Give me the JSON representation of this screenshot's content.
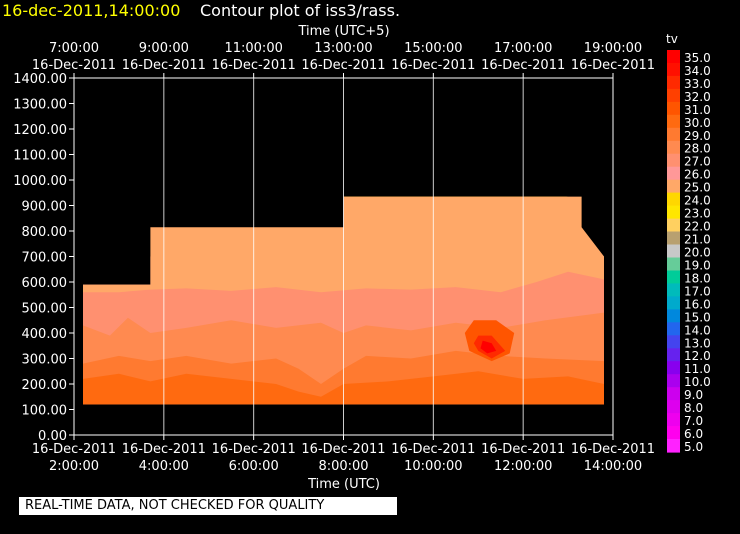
{
  "header": {
    "date": "16-dec-2011,14:00:00",
    "title": "Contour plot of iss3/rass."
  },
  "notice": "REAL-TIME DATA, NOT CHECKED FOR QUALITY",
  "chart_data": {
    "type": "heatmap",
    "top_axis_label": "Time (UTC+5)",
    "bottom_axis_label": "Time (UTC)",
    "bottom_ticks": [
      {
        "hour": 2,
        "date": "16-Dec-2011",
        "time": "2:00:00"
      },
      {
        "hour": 4,
        "date": "16-Dec-2011",
        "time": "4:00:00"
      },
      {
        "hour": 6,
        "date": "16-Dec-2011",
        "time": "6:00:00"
      },
      {
        "hour": 8,
        "date": "16-Dec-2011",
        "time": "8:00:00"
      },
      {
        "hour": 10,
        "date": "16-Dec-2011",
        "time": "10:00:00"
      },
      {
        "hour": 12,
        "date": "16-Dec-2011",
        "time": "12:00:00"
      },
      {
        "hour": 14,
        "date": "16-Dec-2011",
        "time": "14:00:00"
      }
    ],
    "top_ticks": [
      {
        "hour": 2,
        "time": "7:00:00",
        "date": "16-Dec-2011"
      },
      {
        "hour": 4,
        "time": "9:00:00",
        "date": "16-Dec-2011"
      },
      {
        "hour": 6,
        "time": "11:00:00",
        "date": "16-Dec-2011"
      },
      {
        "hour": 8,
        "time": "13:00:00",
        "date": "16-Dec-2011"
      },
      {
        "hour": 10,
        "time": "15:00:00",
        "date": "16-Dec-2011"
      },
      {
        "hour": 12,
        "time": "17:00:00",
        "date": "16-Dec-2011"
      },
      {
        "hour": 14,
        "time": "19:00:00",
        "date": "16-Dec-2011"
      }
    ],
    "xlim": [
      2,
      14
    ],
    "y_ticks": [
      "0.00",
      "100.00",
      "200.00",
      "300.00",
      "400.00",
      "500.00",
      "600.00",
      "700.00",
      "800.00",
      "900.00",
      "1000.00",
      "1100.00",
      "1200.00",
      "1300.00",
      "1400.00"
    ],
    "ylim": [
      0,
      1400
    ],
    "colorbar": {
      "label": "tv",
      "levels": [
        "35.0",
        "34.0",
        "33.0",
        "32.0",
        "31.0",
        "30.0",
        "29.0",
        "28.0",
        "27.0",
        "26.0",
        "25.0",
        "24.0",
        "23.0",
        "22.0",
        "21.0",
        "20.0",
        "19.0",
        "18.0",
        "17.0",
        "16.0",
        "15.0",
        "14.0",
        "13.0",
        "12.0",
        "11.0",
        "10.0",
        "9.0",
        "8.0",
        "7.0",
        "6.0",
        "5.0"
      ],
      "colors": [
        "#ff0000",
        "#ff1000",
        "#ff2a00",
        "#ff4000",
        "#ff5500",
        "#ff6a10",
        "#ff7a30",
        "#ff8a50",
        "#ff9070",
        "#ff9898",
        "#ffa868",
        "#ffd700",
        "#ffe600",
        "#ffd060",
        "#b8a070",
        "#c8c8c8",
        "#66cc99",
        "#00cc99",
        "#00bbbb",
        "#00aacc",
        "#0088dd",
        "#2266ee",
        "#4444ee",
        "#6622ee",
        "#8800ee",
        "#aa00ee",
        "#cc00ee",
        "#dd00ee",
        "#ee00ee",
        "#ff00ee",
        "#ff22ff"
      ]
    },
    "data_columns": [
      {
        "t0": 2.2,
        "t1": 3.7,
        "top": 590,
        "bottom": 120
      },
      {
        "t0": 3.7,
        "t1": 8.0,
        "top": 815,
        "bottom": 120
      },
      {
        "t0": 8.0,
        "t1": 13.3,
        "top": 935,
        "bottom": 120
      }
    ],
    "contours": [
      {
        "value": 25.0,
        "points": [
          [
            2.2,
            590
          ],
          [
            3.7,
            590
          ],
          [
            3.7,
            815
          ],
          [
            8.0,
            815
          ],
          [
            8.0,
            935
          ],
          [
            13.3,
            935
          ],
          [
            13.3,
            815
          ],
          [
            13.8,
            700
          ],
          [
            13.8,
            120
          ],
          [
            2.2,
            120
          ]
        ]
      },
      {
        "value": 24.0,
        "points": [
          [
            8.0,
            935
          ],
          [
            13.0,
            935
          ],
          [
            12.0,
            900
          ],
          [
            11.0,
            860
          ],
          [
            10.0,
            850
          ],
          [
            9.0,
            880
          ],
          [
            8.0,
            920
          ]
        ]
      },
      {
        "value": 26.0,
        "points": [
          [
            2.2,
            590
          ],
          [
            3.7,
            590
          ],
          [
            3.7,
            700
          ],
          [
            5.0,
            690
          ],
          [
            6.0,
            690
          ],
          [
            7.0,
            700
          ],
          [
            8.0,
            660
          ],
          [
            9.0,
            690
          ],
          [
            10.0,
            700
          ],
          [
            11.0,
            720
          ],
          [
            12.0,
            750
          ],
          [
            13.0,
            810
          ],
          [
            13.8,
            700
          ],
          [
            13.8,
            120
          ],
          [
            2.2,
            120
          ]
        ]
      },
      {
        "value": 27.0,
        "points": [
          [
            2.2,
            560
          ],
          [
            3.0,
            560
          ],
          [
            3.7,
            570
          ],
          [
            4.5,
            575
          ],
          [
            5.5,
            565
          ],
          [
            6.5,
            580
          ],
          [
            7.5,
            560
          ],
          [
            8.5,
            575
          ],
          [
            9.5,
            570
          ],
          [
            10.5,
            580
          ],
          [
            11.5,
            560
          ],
          [
            12.3,
            600
          ],
          [
            13.0,
            640
          ],
          [
            13.8,
            610
          ],
          [
            13.8,
            120
          ],
          [
            2.2,
            120
          ]
        ]
      },
      {
        "value": 28.0,
        "points": [
          [
            2.2,
            430
          ],
          [
            2.8,
            390
          ],
          [
            3.2,
            460
          ],
          [
            3.7,
            400
          ],
          [
            4.5,
            420
          ],
          [
            5.5,
            450
          ],
          [
            6.5,
            420
          ],
          [
            7.5,
            440
          ],
          [
            8.0,
            400
          ],
          [
            8.5,
            430
          ],
          [
            9.5,
            410
          ],
          [
            10.5,
            440
          ],
          [
            11.5,
            420
          ],
          [
            12.5,
            450
          ],
          [
            13.8,
            480
          ],
          [
            13.8,
            120
          ],
          [
            2.2,
            120
          ]
        ]
      },
      {
        "value": 29.0,
        "points": [
          [
            2.2,
            280
          ],
          [
            3.0,
            310
          ],
          [
            3.7,
            290
          ],
          [
            4.5,
            310
          ],
          [
            5.5,
            280
          ],
          [
            6.5,
            300
          ],
          [
            7.0,
            260
          ],
          [
            7.5,
            200
          ],
          [
            8.0,
            260
          ],
          [
            8.5,
            310
          ],
          [
            9.5,
            300
          ],
          [
            10.5,
            330
          ],
          [
            11.5,
            310
          ],
          [
            12.5,
            300
          ],
          [
            13.8,
            290
          ],
          [
            13.8,
            120
          ],
          [
            2.2,
            120
          ]
        ]
      },
      {
        "value": 30.0,
        "points": [
          [
            2.2,
            220
          ],
          [
            3.0,
            240
          ],
          [
            3.7,
            210
          ],
          [
            4.5,
            240
          ],
          [
            5.5,
            220
          ],
          [
            6.5,
            200
          ],
          [
            7.0,
            170
          ],
          [
            7.5,
            150
          ],
          [
            8.0,
            200
          ],
          [
            9.0,
            210
          ],
          [
            10.0,
            230
          ],
          [
            11.0,
            250
          ],
          [
            12.0,
            220
          ],
          [
            13.0,
            230
          ],
          [
            13.8,
            200
          ],
          [
            13.8,
            120
          ],
          [
            2.2,
            120
          ]
        ]
      },
      {
        "value": 31.0,
        "points": [
          [
            10.9,
            450
          ],
          [
            11.4,
            450
          ],
          [
            11.8,
            400
          ],
          [
            11.7,
            320
          ],
          [
            11.3,
            290
          ],
          [
            10.8,
            330
          ],
          [
            10.7,
            400
          ]
        ]
      },
      {
        "value": 33.0,
        "points": [
          [
            11.0,
            390
          ],
          [
            11.3,
            390
          ],
          [
            11.6,
            330
          ],
          [
            11.3,
            300
          ],
          [
            11.0,
            330
          ],
          [
            10.9,
            360
          ]
        ]
      },
      {
        "value": 35.0,
        "points": [
          [
            11.1,
            370
          ],
          [
            11.3,
            360
          ],
          [
            11.4,
            330
          ],
          [
            11.2,
            320
          ],
          [
            11.05,
            340
          ]
        ]
      }
    ]
  }
}
